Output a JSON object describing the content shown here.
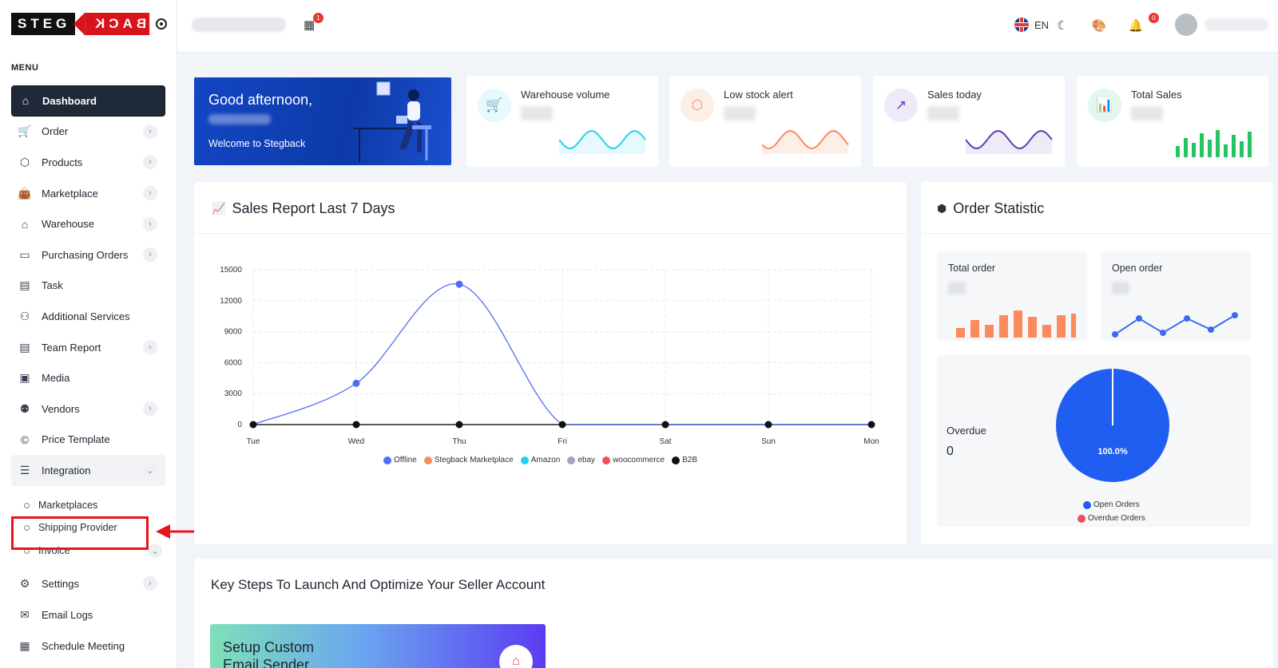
{
  "logo": {
    "left": "STEG",
    "right": "BACK"
  },
  "sidebar": {
    "menu_title": "MENU",
    "items": [
      {
        "label": "Dashboard",
        "icon": "home-icon",
        "chevron": false,
        "active": true
      },
      {
        "label": "Order",
        "icon": "cart-icon",
        "chevron": true
      },
      {
        "label": "Products",
        "icon": "box-icon",
        "chevron": true
      },
      {
        "label": "Marketplace",
        "icon": "bag-icon",
        "chevron": true
      },
      {
        "label": "Warehouse",
        "icon": "warehouse-icon",
        "chevron": true
      },
      {
        "label": "Purchasing Orders",
        "icon": "purchase-icon",
        "chevron": true
      },
      {
        "label": "Task",
        "icon": "clipboard-icon",
        "chevron": false
      },
      {
        "label": "Additional Services",
        "icon": "services-icon",
        "chevron": false
      },
      {
        "label": "Team Report",
        "icon": "report-icon",
        "chevron": true
      },
      {
        "label": "Media",
        "icon": "media-icon",
        "chevron": false
      },
      {
        "label": "Vendors",
        "icon": "vendors-icon",
        "chevron": true
      },
      {
        "label": "Price Template",
        "icon": "price-icon",
        "chevron": false
      },
      {
        "label": "Integration",
        "icon": "integration-icon",
        "chevron": true,
        "open": true
      }
    ],
    "sub_items": [
      "Marketplaces",
      "Shipping Provider",
      "Invoice"
    ],
    "bottom_items": [
      {
        "label": "Settings",
        "icon": "gear-icon",
        "chevron": true
      },
      {
        "label": "Email Logs",
        "icon": "mail-icon",
        "chevron": false
      },
      {
        "label": "Schedule Meeting",
        "icon": "calendar-icon",
        "chevron": false
      }
    ]
  },
  "topbar": {
    "store_badge": "1",
    "language": "EN",
    "notification_badge": "0"
  },
  "welcome": {
    "greeting": "Good afternoon,",
    "message": "Welcome to Stegback"
  },
  "stats": [
    {
      "title": "Warehouse volume",
      "color": "#22d3ee",
      "bg": "#e6f9fd"
    },
    {
      "title": "Low stock alert",
      "color": "#fb8a5c",
      "bg": "#fdeee7"
    },
    {
      "title": "Sales today",
      "color": "#5b3db8",
      "bg": "#eeeaf8"
    },
    {
      "title": "Total Sales",
      "color": "#22c55e",
      "bg": "#e4f7ec"
    }
  ],
  "sales_report": {
    "title": "Sales Report Last 7 Days",
    "chart_data": {
      "type": "line",
      "categories": [
        "Tue",
        "Wed",
        "Thu",
        "Fri",
        "Sat",
        "Sun",
        "Mon"
      ],
      "ylim": [
        0,
        15000
      ],
      "yticks": [
        0,
        3000,
        6000,
        9000,
        12000,
        15000
      ],
      "series": [
        {
          "name": "Offline",
          "color": "#4f6ef7",
          "values": [
            0,
            4000,
            13600,
            0,
            0,
            0,
            0
          ]
        },
        {
          "name": "Stegback Marketplace",
          "color": "#fb8a5c",
          "values": [
            0,
            0,
            0,
            0,
            0,
            0,
            0
          ]
        },
        {
          "name": "Amazon",
          "color": "#22d3ee",
          "values": [
            0,
            0,
            0,
            0,
            0,
            0,
            0
          ]
        },
        {
          "name": "ebay",
          "color": "#a0a8b8",
          "values": [
            0,
            0,
            0,
            0,
            0,
            0,
            0
          ]
        },
        {
          "name": "woocommerce",
          "color": "#ef4f5a",
          "values": [
            0,
            0,
            0,
            0,
            0,
            0,
            0
          ]
        },
        {
          "name": "B2B",
          "color": "#111111",
          "values": [
            0,
            0,
            0,
            0,
            0,
            0,
            0
          ]
        }
      ],
      "grid": true,
      "legend": "bottom"
    }
  },
  "order_statistic": {
    "title": "Order Statistic",
    "total_order_label": "Total order",
    "open_order_label": "Open order",
    "overdue_label": "Overdue",
    "overdue_value": "0",
    "pie": {
      "type": "pie",
      "slices": [
        {
          "name": "Open Orders",
          "value": 100.0,
          "color": "#1f5ef0"
        },
        {
          "name": "Overdue Orders",
          "value": 0.0,
          "color": "#ef4f5a"
        }
      ],
      "label": "100.0%"
    }
  },
  "key_steps": {
    "title": "Key Steps To Launch And Optimize Your Seller Account",
    "card_title": "Setup Custom Email Sender"
  }
}
